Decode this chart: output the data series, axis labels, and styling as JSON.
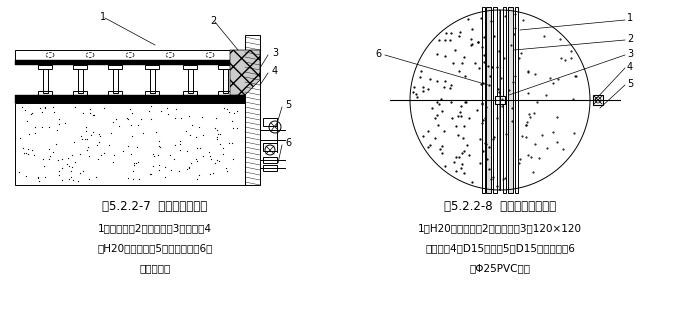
{
  "bg_color": "#ffffff",
  "fig_width": 6.92,
  "fig_height": 3.33,
  "caption1": "图5.2.2-7  模板阳角连接图",
  "caption2": "图5.2.2-8  外墙大模板加固图",
  "desc1_line1": "1－芯带销；2－钢背楞；3－芯带；4",
  "desc1_line2": "－H20木工字梁；5－芯带支座；6－",
  "desc1_line3": "芯带支座销",
  "desc2_line1": "1－H20木工字梁；2－钢背楞；3－120×120",
  "desc2_line2": "钢垫板；4－D15螺杆；5－D15蝶形螺母；6",
  "desc2_line3": "－Φ25PVC套管",
  "font_size_caption": 8.5,
  "font_size_desc": 7.5
}
